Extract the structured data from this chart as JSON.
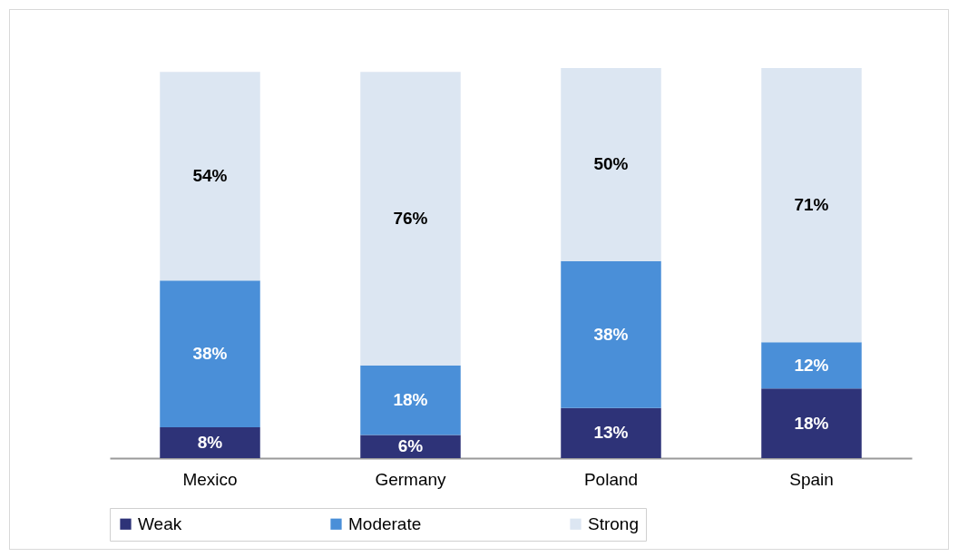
{
  "chart_data": {
    "type": "bar",
    "stacked": true,
    "legend": "bottom",
    "categories": [
      "Mexico",
      "Germany",
      "Poland",
      "Spain"
    ],
    "series": [
      {
        "name": "Weak",
        "color": "#2e3378",
        "values": [
          8,
          6,
          13,
          18
        ],
        "value_labels": [
          "8%",
          "6%",
          "13%",
          "18%"
        ]
      },
      {
        "name": "Moderate",
        "color": "#4a8fd8",
        "values": [
          38,
          18,
          38,
          12
        ],
        "value_labels": [
          "38%",
          "18%",
          "38%",
          "12%"
        ]
      },
      {
        "name": "Strong",
        "color": "#dce6f2",
        "values": [
          54,
          76,
          50,
          71
        ],
        "value_labels": [
          "54%",
          "76%",
          "50%",
          "71%"
        ]
      }
    ]
  }
}
